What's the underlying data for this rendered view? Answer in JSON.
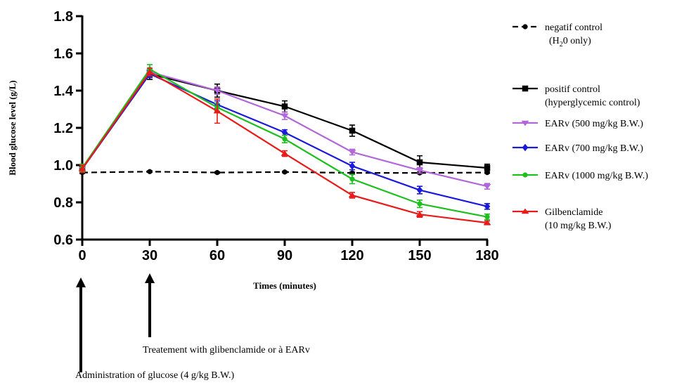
{
  "chart_data": {
    "type": "line",
    "xlabel": "Times (minutes)",
    "ylabel": "Blood glucose level (g/L)",
    "xlim": [
      0,
      180
    ],
    "ylim": [
      0.6,
      1.8
    ],
    "x": [
      0,
      30,
      60,
      90,
      120,
      150,
      180
    ],
    "x_tick_labels": [
      "0",
      "30",
      "60",
      "90",
      "120",
      "150",
      "180"
    ],
    "y_ticks": [
      0.6,
      0.8,
      1.0,
      1.2,
      1.4,
      1.6,
      1.8
    ],
    "y_tick_labels": [
      "0.6",
      "0.8",
      "1.0",
      "1.2",
      "1.4",
      "1.6",
      "1.8"
    ],
    "grid": false,
    "legend_position": "right",
    "series": [
      {
        "legend_line1": "negatif control",
        "legend_line2_prefix": "(H",
        "legend_line2_sub": "2",
        "legend_line2_suffix": "0 only)",
        "color": "#000000",
        "dashed": true,
        "marker": "circle",
        "values": [
          0.96,
          0.965,
          0.96,
          0.963,
          0.958,
          0.958,
          0.96
        ],
        "errors": [
          0.005,
          0.004,
          0.004,
          0.004,
          0.004,
          0.004,
          0.004
        ]
      },
      {
        "legend_line1": "positif control",
        "legend_line2": "(hyperglycemic control)",
        "color": "#000000",
        "dashed": false,
        "marker": "square",
        "values": [
          0.98,
          1.49,
          1.4,
          1.315,
          1.185,
          1.015,
          0.985
        ],
        "errors": [
          0.02,
          0.03,
          0.035,
          0.03,
          0.03,
          0.035,
          0.02
        ]
      },
      {
        "legend_line1": "EARv (500 mg/kg B.W.)",
        "color": "#b266d9",
        "dashed": false,
        "marker": "triangle-down",
        "values": [
          0.98,
          1.5,
          1.4,
          1.265,
          1.07,
          0.972,
          0.886
        ],
        "errors": [
          0.02,
          0.02,
          0.02,
          0.02,
          0.015,
          0.015,
          0.015
        ]
      },
      {
        "legend_line1": "EARv (700 mg/kg B.W.)",
        "color": "#1a1adb",
        "dashed": false,
        "marker": "diamond",
        "values": [
          0.98,
          1.49,
          1.325,
          1.175,
          0.995,
          0.866,
          0.778
        ],
        "errors": [
          0.02,
          0.02,
          0.02,
          0.015,
          0.02,
          0.02,
          0.015
        ]
      },
      {
        "legend_line1": "EARv (1000 mg/kg B.W.)",
        "color": "#1fbf1f",
        "dashed": false,
        "marker": "circle",
        "values": [
          0.985,
          1.515,
          1.31,
          1.14,
          0.925,
          0.792,
          0.722
        ],
        "errors": [
          0.02,
          0.025,
          0.02,
          0.02,
          0.025,
          0.02,
          0.015
        ]
      },
      {
        "legend_line1": "Gilbenclamide",
        "legend_line2": "(10 mg/kg B.W.)",
        "color": "#e81a1a",
        "dashed": false,
        "marker": "triangle-up",
        "values": [
          0.98,
          1.5,
          1.29,
          1.062,
          0.838,
          0.735,
          0.69
        ],
        "errors": [
          0.02,
          0.02,
          0.065,
          0.015,
          0.015,
          0.015,
          0.01
        ]
      }
    ],
    "annotations": [
      {
        "x": 0,
        "text": "Administration of glucose (4 g/kg B.W.)"
      },
      {
        "x": 30,
        "text": "Treatement with glibenclamide or à EARv"
      }
    ]
  }
}
